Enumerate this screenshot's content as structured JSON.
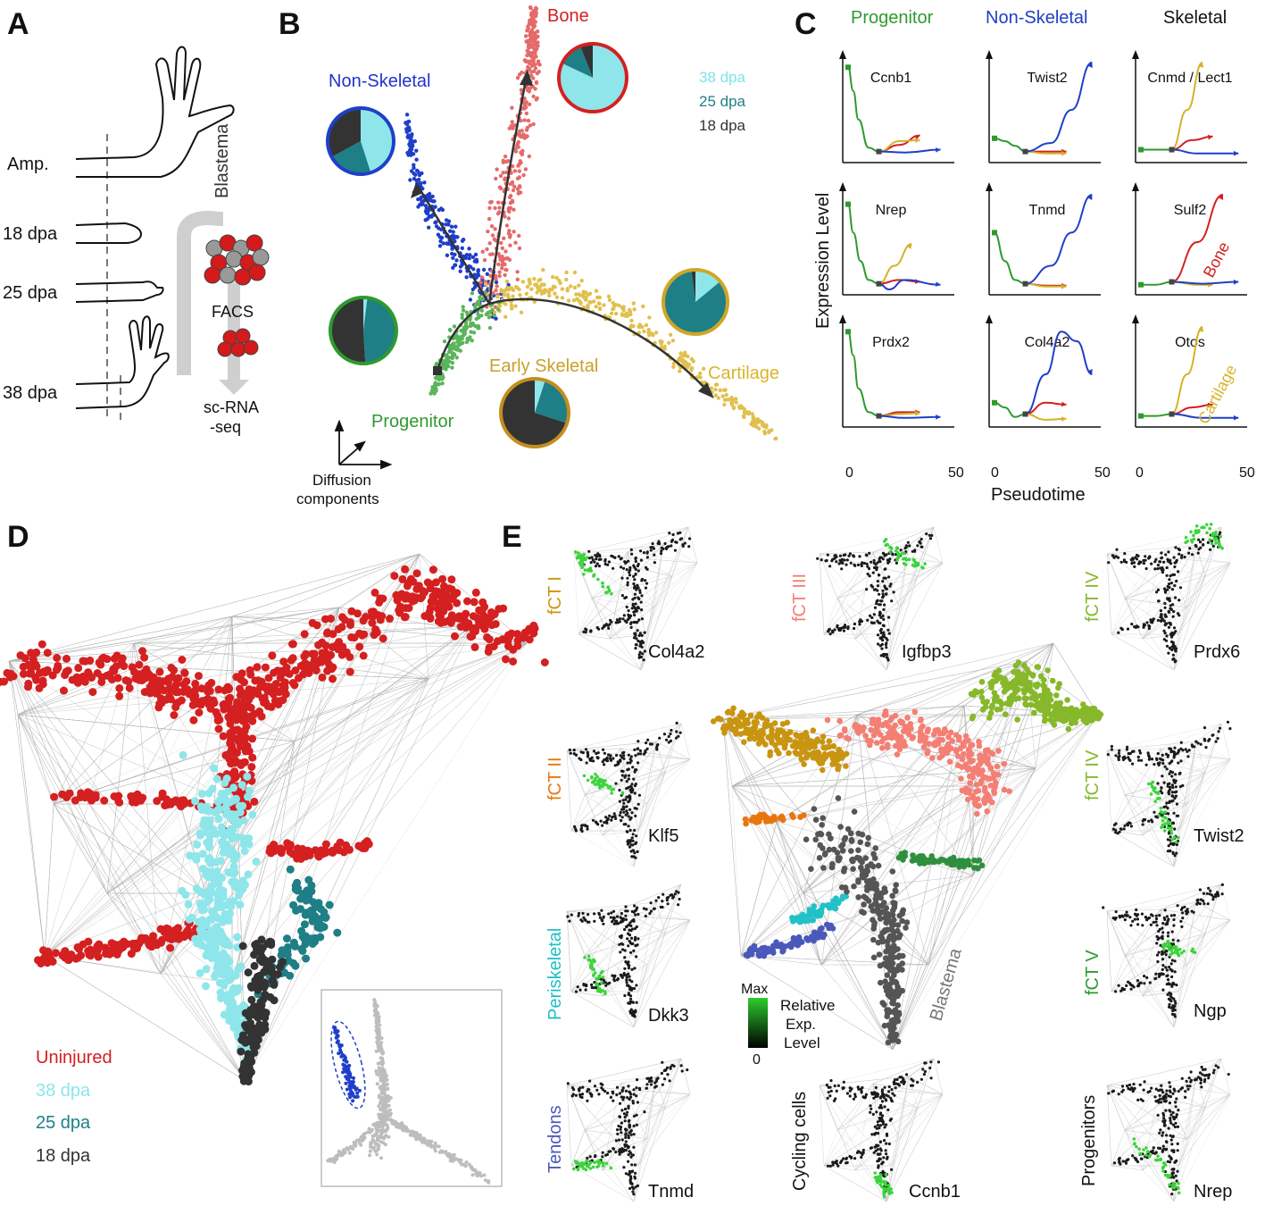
{
  "panels": {
    "A": {
      "letter": "A",
      "stages": [
        "Amp.",
        "18 dpa",
        "25 dpa",
        "38 dpa"
      ],
      "blastema": "Blastema",
      "facs": "FACS",
      "scrna_line1": "sc-RNA",
      "scrna_line2": "-seq"
    },
    "B": {
      "letter": "B",
      "branches": [
        "Non-Skeletal",
        "Bone",
        "Cartilage",
        "Early Skeletal",
        "Progenitor"
      ],
      "legend": [
        "38 dpa",
        "25 dpa",
        "18 dpa"
      ],
      "axis_line1": "Diffusion",
      "axis_line2": "components",
      "pies": [
        {
          "name": "non-skeletal",
          "fractions": [
            0.45,
            0.22,
            0.33
          ]
        },
        {
          "name": "bone",
          "fractions": [
            0.82,
            0.12,
            0.06
          ]
        },
        {
          "name": "progenitor",
          "fractions": [
            0.02,
            0.47,
            0.51
          ]
        },
        {
          "name": "cartilage",
          "fractions": [
            0.14,
            0.84,
            0.02
          ]
        },
        {
          "name": "early-skeletal",
          "fractions": [
            0.05,
            0.25,
            0.7
          ]
        }
      ]
    },
    "C": {
      "letter": "C",
      "columns": [
        "Progenitor",
        "Non-Skeletal",
        "Skeletal"
      ],
      "genes": [
        "Ccnb1",
        "Twist2",
        "Cnmd / Lect1",
        "Nrep",
        "Tnmd",
        "Sulf2",
        "Prdx2",
        "Col4a2",
        "Otos"
      ],
      "ylabel": "Expression Level",
      "xlabel": "Pseudotime",
      "xticks": [
        "0",
        "50"
      ],
      "bone_note": "Bone",
      "cartilage_note": "Cartilage"
    },
    "D": {
      "letter": "D",
      "legend": [
        "Uninjured",
        "38 dpa",
        "25 dpa",
        "18 dpa"
      ]
    },
    "E": {
      "letter": "E",
      "minis": [
        {
          "label": "fCT I",
          "gene": "Col4a2"
        },
        {
          "label": "fCT III",
          "gene": "Igfbp3"
        },
        {
          "label": "fCT IV",
          "gene": "Prdx6"
        },
        {
          "label": "fCT II",
          "gene": "Klf5"
        },
        {
          "label": "fCT IV",
          "gene": "Twist2"
        },
        {
          "label": "Periskeletal",
          "gene": "Dkk3"
        },
        {
          "label": "fCT V",
          "gene": "Ngp"
        },
        {
          "label": "Tendons",
          "gene": "Tnmd"
        },
        {
          "label": "Cycling cells",
          "gene": "Ccnb1"
        },
        {
          "label": "Progenitors",
          "gene": "Nrep"
        }
      ],
      "blastema": "Blastema",
      "scale_max": "Max",
      "scale_min": "0",
      "scale_line1": "Relative",
      "scale_line2": "Exp.",
      "scale_line3": "Level"
    }
  },
  "colors": {
    "green": "#2e9a2e",
    "blue": "#1f3fc8",
    "red": "#d42020",
    "yellow": "#d9b52a",
    "cyan": "#8ee6ea",
    "teal": "#1e7f86",
    "dark": "#333333",
    "salmon": "#f47f74",
    "lime": "#86b82a",
    "orange": "#e8760f",
    "gold": "#c99510"
  }
}
